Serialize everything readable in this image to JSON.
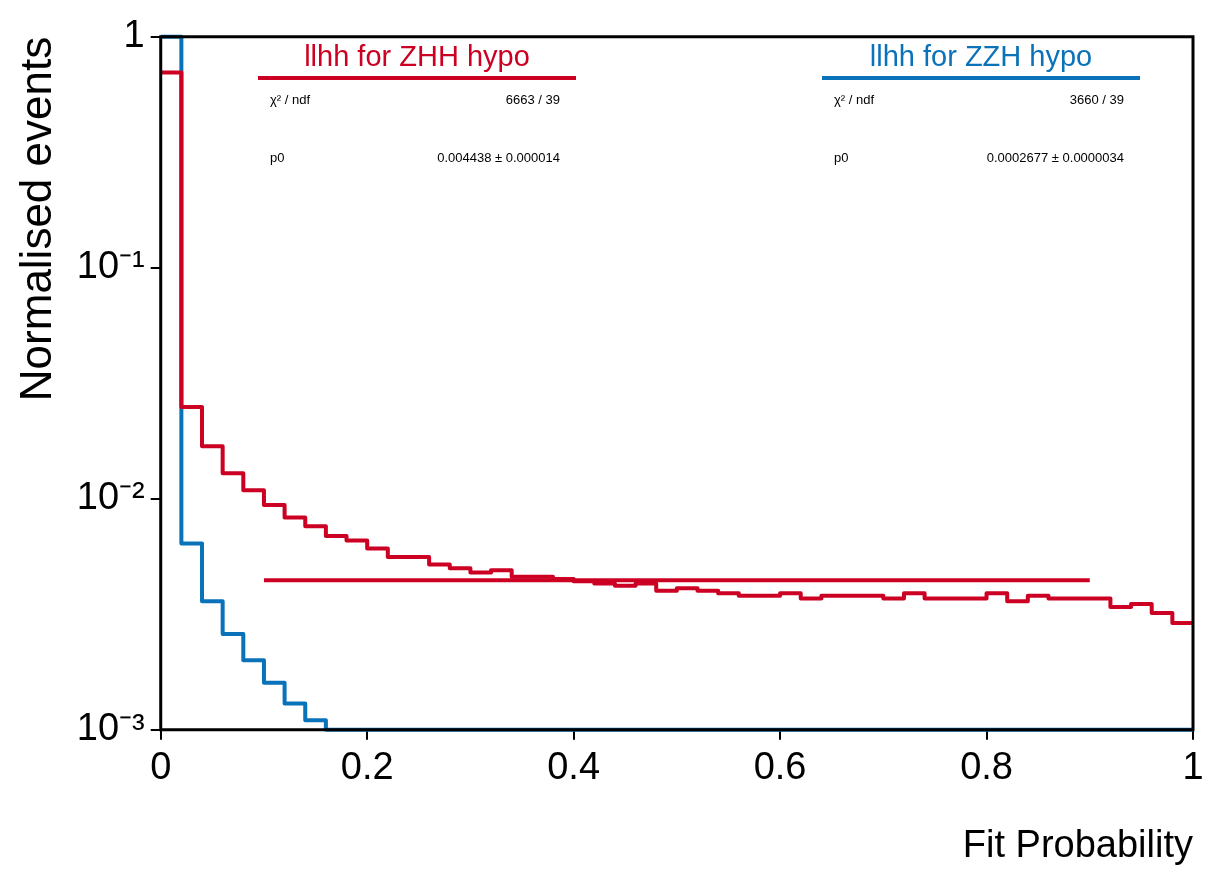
{
  "chart_data": {
    "type": "histogram",
    "xlabel": "Fit Probability",
    "ylabel": "Normalised events",
    "legend": "top",
    "log": "y",
    "grid": false,
    "bins": [
      0,
      0.02,
      0.04,
      0.06,
      0.08,
      0.1,
      0.12,
      0.14,
      0.16,
      0.18,
      0.2,
      0.22,
      0.24,
      0.26,
      0.28,
      0.3,
      0.32,
      0.34,
      0.36,
      0.38,
      0.4,
      0.42,
      0.44,
      0.46,
      0.48,
      0.5,
      0.52,
      0.54,
      0.56,
      0.58,
      0.6,
      0.62,
      0.64,
      0.66,
      0.68,
      0.7,
      0.72,
      0.74,
      0.76,
      0.78,
      0.8,
      0.82,
      0.84,
      0.86,
      0.88,
      0.9,
      0.92,
      0.94,
      0.96,
      0.98,
      1
    ],
    "series": [
      {
        "name": "llhh for ZHH hypo",
        "color": "#cc0022",
        "values": [
          0.7,
          0.025,
          0.0169,
          0.0129,
          0.0109,
          0.0094,
          0.0083,
          0.0076,
          0.0069,
          0.0066,
          0.0061,
          0.0056,
          0.0056,
          0.0052,
          0.005,
          0.0048,
          0.0049,
          0.0046,
          0.0046,
          0.0045,
          0.0044,
          0.0043,
          0.0042,
          0.0043,
          0.004,
          0.0041,
          0.004,
          0.0039,
          0.0038,
          0.0038,
          0.0039,
          0.0037,
          0.0038,
          0.0038,
          0.0038,
          0.0037,
          0.0039,
          0.0037,
          0.0037,
          0.0037,
          0.0039,
          0.0036,
          0.0038,
          0.0037,
          0.0037,
          0.0037,
          0.0034,
          0.0035,
          0.0032,
          0.0029
        ]
      },
      {
        "name": "llhh for ZZH hypo",
        "color": "#0a72b8",
        "values": [
          1,
          0.0064,
          0.0036,
          0.0026,
          0.002,
          0.0016,
          0.0013,
          0.0011,
          0.001,
          0.001,
          0.001,
          0.001,
          0.001,
          0.001,
          0.001,
          0.001,
          0.001,
          0.001,
          0.001,
          0.001,
          0.001,
          0.001,
          0.001,
          0.001,
          0.001,
          0.001,
          0.001,
          0.001,
          0.001,
          0.001,
          0.001,
          0.001,
          0.001,
          0.001,
          0.001,
          0.001,
          0.001,
          0.001,
          0.001,
          0.001,
          0.001,
          0.001,
          0.001,
          0.001,
          0.001,
          0.001,
          0.001,
          0.001,
          0.001,
          0.001
        ]
      },
      {
        "type": "line",
        "color": "#cc0022",
        "x": [
          0.1,
          0.9
        ],
        "values": [
          0.004438,
          0.004438
        ]
      }
    ],
    "xlim": [
      0,
      1
    ],
    "xticks": [
      0,
      0.2,
      0.4,
      0.6,
      0.8,
      1
    ],
    "ylim": [
      0.001,
      1
    ],
    "yticks": [
      {
        "value": 0.001,
        "label": "10⁻³"
      },
      {
        "value": 0.01,
        "label": "10⁻²"
      },
      {
        "value": 0.1,
        "label": "10⁻¹"
      },
      {
        "value": 1,
        "label": "1"
      }
    ],
    "annotations": [
      "χ² / ndf",
      "6663 / 39",
      "p0",
      "0.004438  ± 0.000014",
      "χ² / ndf",
      "3660 / 39",
      "p0",
      "0.0002677  ± 0.0000034"
    ]
  }
}
